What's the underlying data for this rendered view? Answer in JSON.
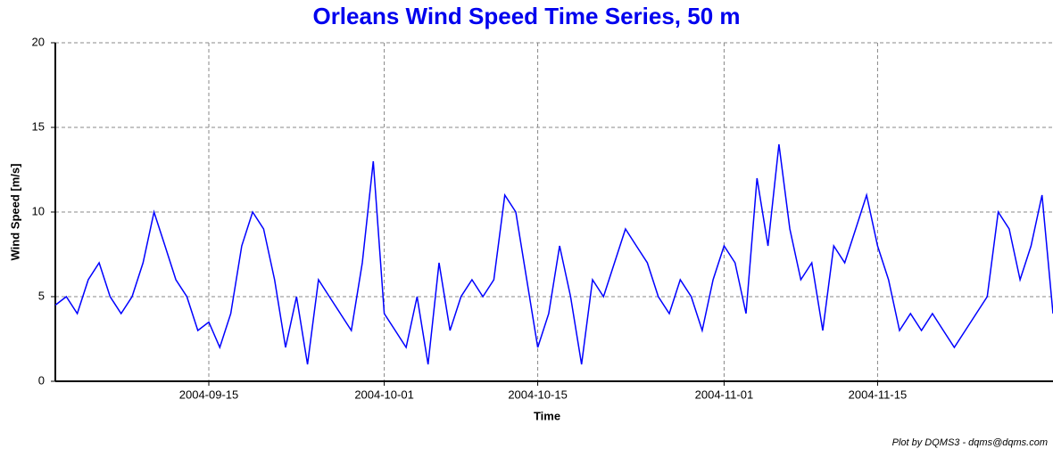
{
  "chart_data": {
    "type": "line",
    "title": "Orleans Wind Speed Time Series, 50 m",
    "y_label": "Wind Speed [m/s]",
    "x_label": "Time",
    "footer": "Plot by DQMS3 - dqms@dqms.com",
    "color": "#0000ff",
    "grid": true,
    "xlim": [
      "2004-09-01",
      "2004-12-01"
    ],
    "xticks": [
      "2004-09-15",
      "2004-10-01",
      "2004-10-15",
      "2004-11-01",
      "2004-11-15"
    ],
    "ylim": [
      0,
      20
    ],
    "yticks": [
      0,
      5,
      10,
      15,
      20
    ],
    "x": [
      "2004-09-01",
      "2004-09-02",
      "2004-09-03",
      "2004-09-04",
      "2004-09-05",
      "2004-09-06",
      "2004-09-07",
      "2004-09-08",
      "2004-09-09",
      "2004-09-10",
      "2004-09-11",
      "2004-09-12",
      "2004-09-13",
      "2004-09-14",
      "2004-09-15",
      "2004-09-16",
      "2004-09-17",
      "2004-09-18",
      "2004-09-19",
      "2004-09-20",
      "2004-09-21",
      "2004-09-22",
      "2004-09-23",
      "2004-09-24",
      "2004-09-25",
      "2004-09-26",
      "2004-09-27",
      "2004-09-28",
      "2004-09-29",
      "2004-09-30",
      "2004-10-01",
      "2004-10-02",
      "2004-10-03",
      "2004-10-04",
      "2004-10-05",
      "2004-10-06",
      "2004-10-07",
      "2004-10-08",
      "2004-10-09",
      "2004-10-10",
      "2004-10-11",
      "2004-10-12",
      "2004-10-13",
      "2004-10-14",
      "2004-10-15",
      "2004-10-16",
      "2004-10-17",
      "2004-10-18",
      "2004-10-19",
      "2004-10-20",
      "2004-10-21",
      "2004-10-22",
      "2004-10-23",
      "2004-10-24",
      "2004-10-25",
      "2004-10-26",
      "2004-10-27",
      "2004-10-28",
      "2004-10-29",
      "2004-10-30",
      "2004-10-31",
      "2004-11-01",
      "2004-11-02",
      "2004-11-03",
      "2004-11-04",
      "2004-11-05",
      "2004-11-06",
      "2004-11-07",
      "2004-11-08",
      "2004-11-09",
      "2004-11-10",
      "2004-11-11",
      "2004-11-12",
      "2004-11-13",
      "2004-11-14",
      "2004-11-15",
      "2004-11-16",
      "2004-11-17",
      "2004-11-18",
      "2004-11-19",
      "2004-11-20",
      "2004-11-21",
      "2004-11-22",
      "2004-11-23",
      "2004-11-24",
      "2004-11-25",
      "2004-11-26",
      "2004-11-27",
      "2004-11-28",
      "2004-11-29",
      "2004-11-30",
      "2004-12-01"
    ],
    "values": [
      4.5,
      5,
      4,
      6,
      7,
      5,
      4,
      5,
      7,
      10,
      8,
      6,
      5,
      3,
      3.5,
      2,
      4,
      8,
      10,
      9,
      6,
      2,
      5,
      1,
      6,
      5,
      4,
      3,
      7,
      13,
      4,
      3,
      2,
      5,
      1,
      7,
      3,
      5,
      6,
      5,
      6,
      11,
      10,
      6,
      2,
      4,
      8,
      5,
      1,
      6,
      5,
      7,
      9,
      8,
      7,
      5,
      4,
      6,
      5,
      3,
      6,
      8,
      7,
      4,
      12,
      8,
      14,
      9,
      6,
      7,
      3,
      8,
      7,
      9,
      11,
      8,
      6,
      3,
      4,
      3,
      4,
      3,
      2,
      3,
      4,
      5,
      10,
      9,
      6,
      8,
      11,
      4
    ]
  }
}
